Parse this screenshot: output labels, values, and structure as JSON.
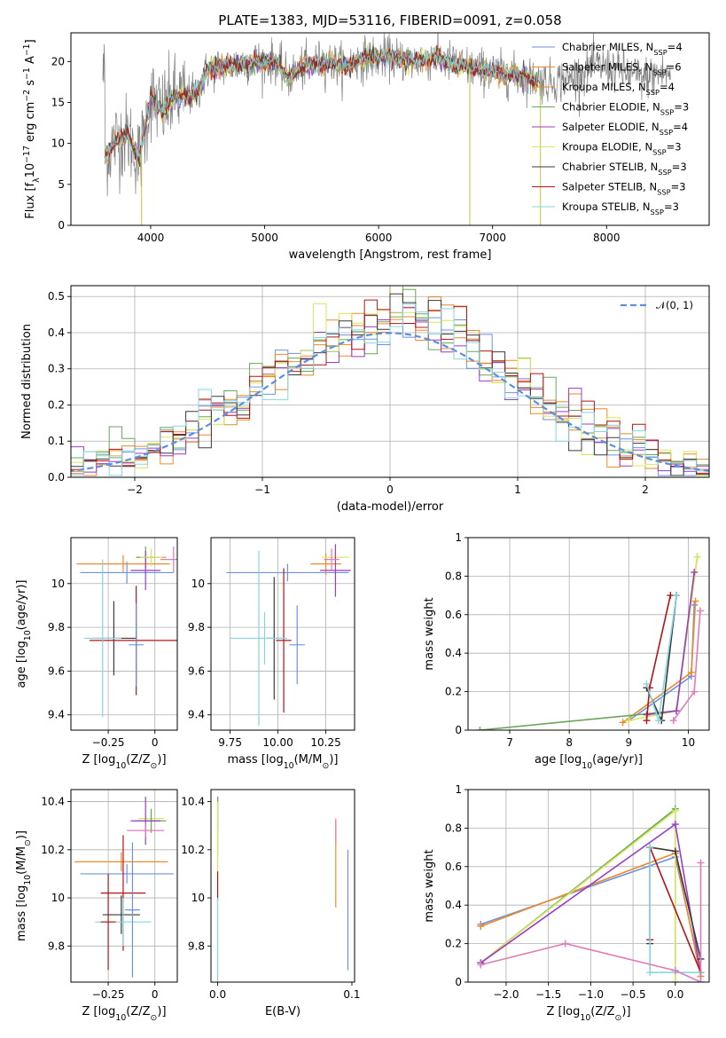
{
  "figure": {
    "title": "PLATE=1383, MJD=53116, FIBERID=0091, z=0.058"
  },
  "colors": {
    "data": "#7f7f7f",
    "gauss": "#5b8fe0",
    "series": [
      "#6c92e6",
      "#ee8a2a",
      "#e08a2a",
      "#6aa65a",
      "#9b3cc4",
      "#d9e85a",
      "#3a3a3a",
      "#b31414",
      "#86d6e0"
    ],
    "series_pts": [
      "#5a84e0",
      "#e8801f",
      "#e87d1f",
      "#60a050",
      "#9030c0",
      "#d0e050",
      "#333333",
      "#a01010",
      "#7fcfdc"
    ],
    "extra_pts": [
      "#e07ab8"
    ]
  },
  "legend": {
    "spectrum": [
      "Chabrier MILES, N$SSP$=4",
      "Salpeter MILES, N$SSP$=6",
      "Kroupa MILES, N$SSP$=4",
      "Chabrier ELODIE, N$SSP$=3",
      "Salpeter ELODIE, N$SSP$=4",
      "Kroupa ELODIE, N$SSP$=3",
      "Chabrier STELIB, N$SSP$=3",
      "Salpeter STELIB, N$SSP$=3",
      "Kroupa STELIB, N$SSP$=3"
    ],
    "hist": "𝒩(0, 1)"
  },
  "chart_data": [
    {
      "id": "spectrum",
      "type": "line",
      "xlabel": "wavelength [Angstrom, rest frame]",
      "ylabel": "Flux [f$λ$10$−17$ erg cm$−2$ s$−1$ A$−1$]",
      "xlim": [
        3300,
        8900
      ],
      "ylim": [
        0,
        23.5
      ],
      "xticks": [
        4000,
        5000,
        6000,
        7000,
        8000
      ],
      "yticks": [
        0,
        5,
        10,
        15,
        20
      ],
      "grid": false,
      "legend_position": "upper right",
      "continuum_points": [
        [
          3600,
          8.5
        ],
        [
          3700,
          10.5
        ],
        [
          3800,
          11
        ],
        [
          3900,
          8
        ],
        [
          4000,
          15.5
        ],
        [
          4100,
          14
        ],
        [
          4200,
          15.5
        ],
        [
          4400,
          16
        ],
        [
          4500,
          19
        ],
        [
          4700,
          19.5
        ],
        [
          4900,
          20
        ],
        [
          5100,
          20
        ],
        [
          5200,
          18
        ],
        [
          5300,
          19
        ],
        [
          5500,
          20
        ],
        [
          5700,
          19.5
        ],
        [
          5900,
          20.5
        ],
        [
          6100,
          20.5
        ],
        [
          6300,
          20
        ],
        [
          6500,
          20.5
        ],
        [
          6700,
          19.5
        ],
        [
          6900,
          19
        ],
        [
          7100,
          18.5
        ],
        [
          7300,
          18
        ],
        [
          7500,
          17.5
        ],
        [
          7700,
          18
        ],
        [
          7900,
          19.5
        ],
        [
          8100,
          19
        ],
        [
          8300,
          18
        ],
        [
          8500,
          18.5
        ]
      ],
      "model_end_wavelength": 7400,
      "drop_lines": [
        3920,
        6800,
        7420
      ]
    },
    {
      "id": "residual_hist",
      "type": "histogram",
      "xlabel": "(data-model)/error",
      "ylabel": "Normed distribution",
      "xlim": [
        -2.5,
        2.5
      ],
      "ylim": [
        0,
        0.53
      ],
      "xticks": [
        -2,
        -1,
        0,
        1,
        2
      ],
      "yticks": [
        0.0,
        0.1,
        0.2,
        0.3,
        0.4,
        0.5
      ],
      "grid": true,
      "bin_width": 0.1,
      "reference_curve": "normal(0,1)",
      "legend_position": "upper right"
    },
    {
      "id": "age_vs_Z",
      "type": "errorbar",
      "xlabel": "Z [log$10$(Z/Z$⊙$)]",
      "ylabel": "age  [log$10$(age/yr)]",
      "xlim": [
        -0.45,
        0.12
      ],
      "ylim": [
        9.33,
        10.21
      ],
      "xticks": [
        -0.25,
        0.0
      ],
      "yticks": [
        9.4,
        9.6,
        9.8,
        10.0
      ],
      "grid": true,
      "points": [
        {
          "x": -0.15,
          "y": 10.05,
          "xerr": 0.25,
          "yerr": 0.05,
          "c": 0
        },
        {
          "x": -0.17,
          "y": 10.09,
          "xerr": 0.25,
          "yerr": 0.04,
          "c": 1
        },
        {
          "x": -0.02,
          "y": 10.12,
          "xerr": 0.08,
          "yerr": 0.03,
          "c": 2
        },
        {
          "x": -0.05,
          "y": 10.12,
          "xerr": 0.05,
          "yerr": 0.05,
          "c": 3
        },
        {
          "x": -0.05,
          "y": 10.06,
          "xerr": 0.08,
          "yerr": 0.09,
          "c": 4
        },
        {
          "x": -0.02,
          "y": 10.12,
          "xerr": 0.06,
          "yerr": 0.04,
          "c": 5
        },
        {
          "x": -0.22,
          "y": 9.75,
          "xerr": 0.12,
          "yerr": 0.17,
          "c": 6
        },
        {
          "x": -0.1,
          "y": 9.74,
          "xerr": 0.25,
          "yerr": 0.25,
          "c": 7
        },
        {
          "x": -0.28,
          "y": 9.75,
          "xerr": 0.1,
          "yerr": 0.36,
          "c": 8
        },
        {
          "x": -0.1,
          "y": 9.72,
          "xerr": 0.04,
          "yerr": 0.19,
          "c": 0
        },
        {
          "x": 0.1,
          "y": 10.11,
          "xerr": 0.07,
          "yerr": 0.06,
          "c": 9
        }
      ]
    },
    {
      "id": "age_vs_mass",
      "type": "errorbar",
      "xlabel": "mass [log$10$(M/M$⊙$)]",
      "ylabel": "",
      "xlim": [
        9.65,
        10.4
      ],
      "ylim": [
        9.33,
        10.21
      ],
      "xticks": [
        9.75,
        10.0,
        10.25
      ],
      "yticks": [
        9.4,
        9.6,
        9.8,
        10.0
      ],
      "xticklabels": [
        "9.75",
        "10.00",
        "10.25"
      ],
      "grid": true,
      "points": [
        {
          "x": 10.05,
          "y": 10.05,
          "xerr": 0.32,
          "yerr": 0.04,
          "c": 0
        },
        {
          "x": 10.25,
          "y": 10.09,
          "xerr": 0.08,
          "yerr": 0.05,
          "c": 1
        },
        {
          "x": 10.3,
          "y": 10.12,
          "xerr": 0.07,
          "yerr": 0.03,
          "c": 5
        },
        {
          "x": 10.3,
          "y": 10.06,
          "xerr": 0.08,
          "yerr": 0.12,
          "c": 4
        },
        {
          "x": 10.28,
          "y": 10.11,
          "xerr": 0.04,
          "yerr": 0.05,
          "c": 9
        },
        {
          "x": 9.98,
          "y": 9.75,
          "xerr": 0.04,
          "yerr": 0.28,
          "c": 6
        },
        {
          "x": 9.93,
          "y": 9.75,
          "xerr": 0.04,
          "yerr": 0.12,
          "c": 8
        },
        {
          "x": 10.03,
          "y": 9.74,
          "xerr": 0.04,
          "yerr": 0.33,
          "c": 7
        },
        {
          "x": 9.9,
          "y": 9.75,
          "xerr": 0.15,
          "yerr": 0.4,
          "c": 8
        },
        {
          "x": 10.1,
          "y": 9.72,
          "xerr": 0.04,
          "yerr": 0.18,
          "c": 0
        }
      ]
    },
    {
      "id": "massweight_vs_age",
      "type": "line",
      "xlabel": "age  [log$10$(age/yr)]",
      "ylabel": "mass weight",
      "xlim": [
        6.3,
        10.35
      ],
      "ylim": [
        0,
        1.0
      ],
      "xticks": [
        7,
        8,
        9,
        10
      ],
      "yticks": [
        0.0,
        0.2,
        0.4,
        0.6,
        0.8,
        1.0
      ],
      "grid": true,
      "series": [
        {
          "c": 0,
          "x": [
            9.0,
            10.05,
            10.1
          ],
          "y": [
            0.05,
            0.28,
            0.65
          ]
        },
        {
          "c": 1,
          "x": [
            8.9,
            10.05,
            10.12
          ],
          "y": [
            0.04,
            0.3,
            0.67
          ]
        },
        {
          "c": 3,
          "x": [
            6.5,
            9.8,
            10.15
          ],
          "y": [
            0.0,
            0.1,
            0.9
          ]
        },
        {
          "c": 5,
          "x": [
            9.0,
            9.8,
            10.15
          ],
          "y": [
            0.05,
            0.1,
            0.9
          ]
        },
        {
          "c": 4,
          "x": [
            9.3,
            9.8,
            10.1
          ],
          "y": [
            0.08,
            0.1,
            0.82
          ]
        },
        {
          "c": 6,
          "x": [
            9.3,
            9.55,
            9.8
          ],
          "y": [
            0.22,
            0.05,
            0.7
          ]
        },
        {
          "c": 7,
          "x": [
            9.3,
            9.35,
            9.7
          ],
          "y": [
            0.05,
            0.22,
            0.7
          ]
        },
        {
          "c": 8,
          "x": [
            9.3,
            9.5,
            9.8
          ],
          "y": [
            0.24,
            0.05,
            0.7
          ]
        },
        {
          "c": 9,
          "x": [
            9.75,
            10.1,
            10.2
          ],
          "y": [
            0.05,
            0.2,
            0.62
          ]
        }
      ]
    },
    {
      "id": "mass_vs_Z",
      "type": "errorbar",
      "xlabel": "Z [log$10$(Z/Z$⊙$)]",
      "ylabel": "mass [log$10$(M/M$⊙$)]",
      "xlim": [
        -0.45,
        0.12
      ],
      "ylim": [
        9.65,
        10.45
      ],
      "xticks": [
        -0.25,
        0.0
      ],
      "yticks": [
        9.8,
        10.0,
        10.2,
        10.4
      ],
      "grid": true,
      "points": [
        {
          "x": -0.15,
          "y": 10.1,
          "xerr": 0.25,
          "yerr": 0.04,
          "c": 0
        },
        {
          "x": -0.18,
          "y": 10.15,
          "xerr": 0.25,
          "yerr": 0.04,
          "c": 1
        },
        {
          "x": -0.02,
          "y": 10.33,
          "xerr": 0.07,
          "yerr": 0.04,
          "c": 5
        },
        {
          "x": -0.02,
          "y": 10.32,
          "xerr": 0.08,
          "yerr": 0.05,
          "c": 3
        },
        {
          "x": -0.05,
          "y": 10.32,
          "xerr": 0.08,
          "yerr": 0.1,
          "c": 4
        },
        {
          "x": -0.05,
          "y": 10.28,
          "xerr": 0.1,
          "yerr": 0.03,
          "c": 9
        },
        {
          "x": -0.17,
          "y": 10.02,
          "xerr": 0.12,
          "yerr": 0.24,
          "c": 7
        },
        {
          "x": -0.18,
          "y": 9.93,
          "xerr": 0.1,
          "yerr": 0.08,
          "c": 6
        },
        {
          "x": -0.17,
          "y": 9.9,
          "xerr": 0.15,
          "yerr": 0.1,
          "c": 8
        },
        {
          "x": -0.12,
          "y": 9.95,
          "xerr": 0.04,
          "yerr": 0.28,
          "c": 0
        },
        {
          "x": -0.25,
          "y": 9.9,
          "xerr": 0.04,
          "yerr": 0.2,
          "c": 7
        }
      ]
    },
    {
      "id": "mass_vs_EBV",
      "type": "errorbar",
      "xlabel": "E(B-V)",
      "ylabel": "",
      "xlim": [
        -0.005,
        0.102
      ],
      "ylim": [
        9.65,
        10.45
      ],
      "xticks": [
        0.0,
        0.1
      ],
      "yticks": [
        9.8,
        10.0,
        10.2,
        10.4
      ],
      "xticklabels": [
        "0.0",
        "0.1"
      ],
      "grid": false,
      "points": [
        {
          "x": 0.0,
          "y": 10.35,
          "xerr": 0.0,
          "yerr": 0.07,
          "c": 4
        },
        {
          "x": 0.0,
          "y": 10.3,
          "xerr": 0.0,
          "yerr": 0.12,
          "c": 3
        },
        {
          "x": 0.0,
          "y": 10.25,
          "xerr": 0.0,
          "yerr": 0.15,
          "c": 5
        },
        {
          "x": 0.0,
          "y": 10.05,
          "xerr": 0.0,
          "yerr": 0.06,
          "c": 7
        },
        {
          "x": 0.0,
          "y": 9.8,
          "xerr": 0.0,
          "yerr": 0.2,
          "c": 8
        },
        {
          "x": 0.088,
          "y": 10.14,
          "xerr": 0.0,
          "yerr": 0.18,
          "c": 1
        },
        {
          "x": 0.088,
          "y": 10.28,
          "xerr": 0.0,
          "yerr": 0.05,
          "c": 9
        },
        {
          "x": 0.097,
          "y": 9.95,
          "xerr": 0.0,
          "yerr": 0.25,
          "c": 0
        }
      ]
    },
    {
      "id": "massweight_vs_Z",
      "type": "line",
      "xlabel": "Z [log$10$(Z/Z$⊙$)]",
      "ylabel": "mass weight",
      "xlim": [
        -2.45,
        0.4
      ],
      "ylim": [
        0,
        1.0
      ],
      "xticks": [
        -2.0,
        -1.5,
        -1.0,
        -0.5,
        0.0
      ],
      "yticks": [
        0.0,
        0.2,
        0.4,
        0.6,
        0.8,
        1.0
      ],
      "xticklabels": [
        "−2.0",
        "−1.5",
        "−1.0",
        "−0.5",
        "0.0"
      ],
      "grid": true,
      "series": [
        {
          "c": 0,
          "x": [
            -2.3,
            0.0,
            0.3
          ],
          "y": [
            0.3,
            0.65,
            0.05
          ]
        },
        {
          "c": 1,
          "x": [
            -2.3,
            0.0,
            0.3
          ],
          "y": [
            0.29,
            0.67,
            0.03
          ]
        },
        {
          "c": 3,
          "x": [
            -2.3,
            0.0,
            0.0
          ],
          "y": [
            0.1,
            0.9,
            0.0
          ]
        },
        {
          "c": 5,
          "x": [
            -2.3,
            0.0,
            0.0
          ],
          "y": [
            0.1,
            0.89,
            0.0
          ]
        },
        {
          "c": 4,
          "x": [
            -2.3,
            0.0,
            0.3
          ],
          "y": [
            0.1,
            0.82,
            0.05
          ]
        },
        {
          "c": 6,
          "x": [
            -0.3,
            -0.3,
            0.0,
            0.3
          ],
          "y": [
            0.2,
            0.7,
            0.68,
            0.12
          ]
        },
        {
          "c": 7,
          "x": [
            -0.3,
            -0.3,
            0.3
          ],
          "y": [
            0.22,
            0.7,
            0.05
          ]
        },
        {
          "c": 8,
          "x": [
            -0.3,
            -0.3,
            0.3
          ],
          "y": [
            0.7,
            0.05,
            0.05
          ]
        },
        {
          "c": 9,
          "x": [
            -2.3,
            -1.3,
            0.0,
            0.3,
            0.3
          ],
          "y": [
            0.09,
            0.2,
            0.06,
            0.0,
            0.62
          ]
        }
      ]
    }
  ]
}
